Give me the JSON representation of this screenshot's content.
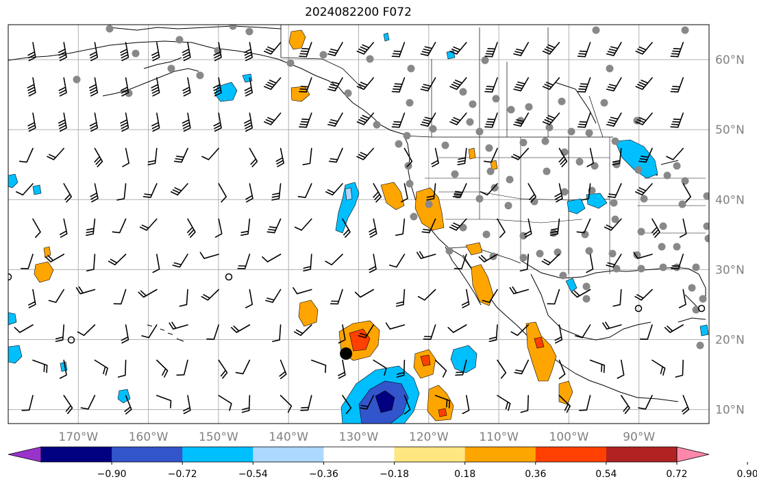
{
  "title": "2024082200 F072",
  "map": {
    "projection": "plate-carree",
    "lon_range": [
      -180,
      -80
    ],
    "lat_range": [
      8,
      65
    ],
    "gridlines": true,
    "lat_ticks": [
      {
        "value": 60,
        "label": "60°N"
      },
      {
        "value": 50,
        "label": "50°N"
      },
      {
        "value": 40,
        "label": "40°N"
      },
      {
        "value": 30,
        "label": "30°N"
      },
      {
        "value": 20,
        "label": "20°N"
      },
      {
        "value": 10,
        "label": "10°N"
      }
    ],
    "lon_ticks": [
      {
        "value": -170,
        "label": "170°W"
      },
      {
        "value": -160,
        "label": "160°W"
      },
      {
        "value": -150,
        "label": "150°W"
      },
      {
        "value": -140,
        "label": "140°W"
      },
      {
        "value": -130,
        "label": "130°W"
      },
      {
        "value": -120,
        "label": "120°W"
      },
      {
        "value": -110,
        "label": "110°W"
      },
      {
        "value": -100,
        "label": "100°W"
      },
      {
        "value": -90,
        "label": "90°W"
      }
    ],
    "storm_center": {
      "lon": -131.8,
      "lat": 18.0
    },
    "overlays": [
      "coastlines",
      "country-borders",
      "state-borders",
      "wind-barbs",
      "station-dots",
      "filled-anomaly-contours"
    ]
  },
  "colorbar": {
    "extend": "both",
    "colors": [
      "#9933cc",
      "#000080",
      "#3355cc",
      "#00bfff",
      "#add8ff",
      "#ffffff",
      "#ffe680",
      "#ffa500",
      "#ff4000",
      "#b22222",
      "#ff88aa"
    ],
    "tick_labels": [
      "−0.90",
      "−0.72",
      "−0.54",
      "−0.36",
      "−0.18",
      "0.18",
      "0.36",
      "0.54",
      "0.72",
      "0.90"
    ]
  }
}
